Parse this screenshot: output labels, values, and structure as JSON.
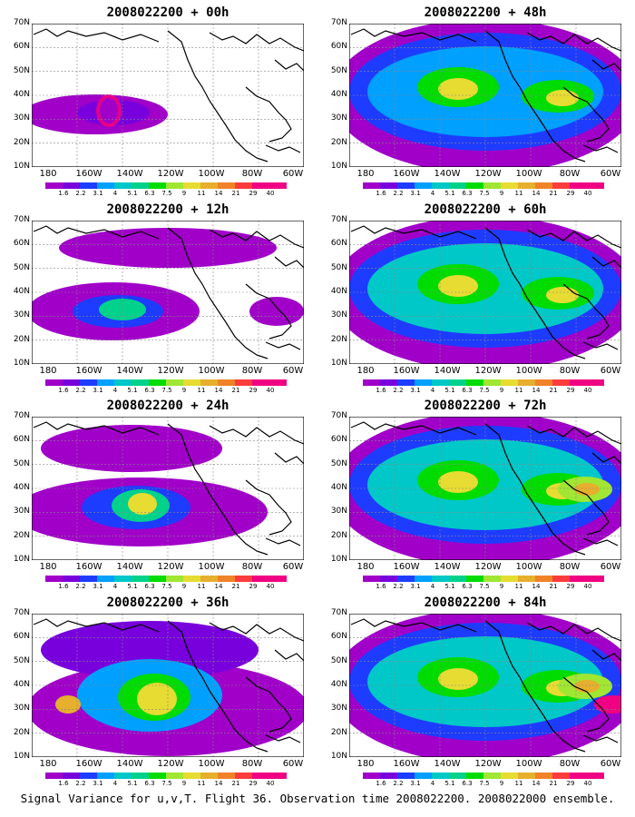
{
  "footer": "Signal Variance for u,v,T. Flight 36. Observation time 2008022200. 2008022000 ensemble.",
  "lat_labels": [
    "70N",
    "60N",
    "50N",
    "40N",
    "30N",
    "20N",
    "10N"
  ],
  "lon_labels": [
    "180",
    "160W",
    "140W",
    "120W",
    "100W",
    "80W",
    "60W"
  ],
  "colorbar": {
    "labels": [
      "1.6",
      "2.2",
      "3.1",
      "4",
      "5.1",
      "6.3",
      "7.5",
      "9",
      "11",
      "14",
      "21",
      "29",
      "40"
    ],
    "colors": [
      "#a000c8",
      "#7800dc",
      "#1e3cff",
      "#00a0ff",
      "#00c8c8",
      "#00d28c",
      "#00dc00",
      "#a0e632",
      "#e6dc32",
      "#e6af2d",
      "#f08228",
      "#fa3c3c",
      "#f00082"
    ]
  },
  "panels": [
    {
      "title": "2008022200 + 00h",
      "intensity": 1
    },
    {
      "title": "2008022200 + 12h",
      "intensity": 2
    },
    {
      "title": "2008022200 + 24h",
      "intensity": 3
    },
    {
      "title": "2008022200 + 36h",
      "intensity": 4
    },
    {
      "title": "2008022200 + 48h",
      "intensity": 5
    },
    {
      "title": "2008022200 + 60h",
      "intensity": 6
    },
    {
      "title": "2008022200 + 72h",
      "intensity": 7
    },
    {
      "title": "2008022200 + 84h",
      "intensity": 8
    }
  ]
}
